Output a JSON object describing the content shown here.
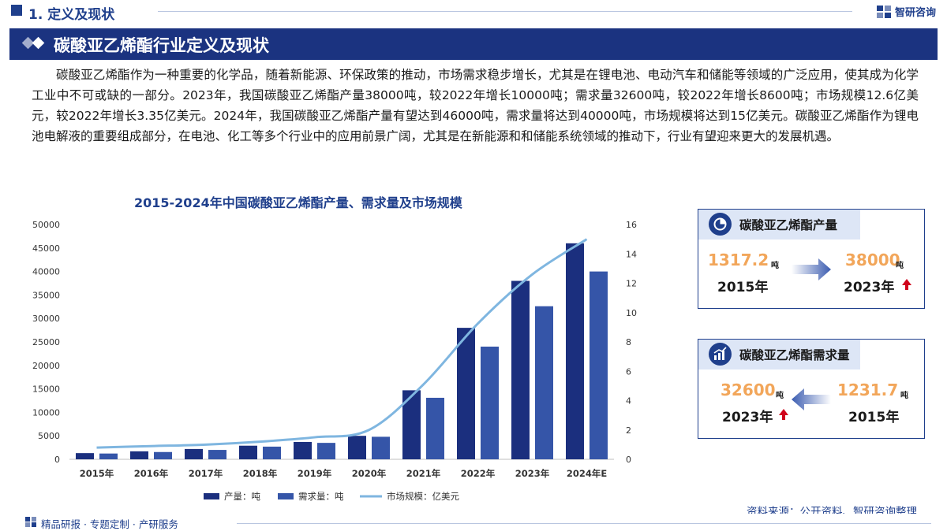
{
  "header": {
    "section": "1. 定义及现状",
    "brand": "智研咨询"
  },
  "title_bar": {
    "title": "碳酸亚乙烯酯行业定义及现状"
  },
  "intro": {
    "text": "碳酸亚乙烯酯作为一种重要的化学品，随着新能源、环保政策的推动，市场需求稳步增长，尤其是在锂电池、电动汽车和储能等领域的广泛应用，使其成为化学工业中不可或缺的一部分。2023年，我国碳酸亚乙烯酯产量38000吨，较2022年增长10000吨；需求量32600吨，较2022年增长8600吨；市场规模12.6亿美元，较2022年增长3.35亿美元。2024年，我国碳酸亚乙烯酯产量有望达到46000吨，需求量将达到40000吨，市场规模将达到15亿美元。碳酸亚乙烯酯作为锂电池电解液的重要组成部分，在电池、化工等多个行业中的应用前景广阔，尤其是在新能源和和储能系统领域的推动下，行业有望迎来更大的发展机遇。"
  },
  "chart_data": {
    "type": "bar",
    "title": "2015-2024年中国碳酸亚乙烯酯产量、需求量及市场规模",
    "categories": [
      "2015年",
      "2016年",
      "2017年",
      "2018年",
      "2019年",
      "2020年",
      "2021年",
      "2022年",
      "2023年",
      "2024年E"
    ],
    "series": [
      {
        "name": "产量：吨",
        "kind": "bar",
        "axis": "left",
        "color": "#1b2f7e",
        "values": [
          1317.2,
          1700,
          2200,
          2900,
          3700,
          5000,
          14700,
          28000,
          38000,
          46000
        ]
      },
      {
        "name": "需求量：吨",
        "kind": "bar",
        "axis": "left",
        "color": "#3555a8",
        "values": [
          1231.7,
          1550,
          2000,
          2700,
          3500,
          4800,
          13100,
          24000,
          32600,
          40000
        ]
      },
      {
        "name": "市场规模：亿美元",
        "kind": "line",
        "axis": "right",
        "color": "#7fb6e0",
        "values": [
          0.8,
          0.9,
          1.0,
          1.2,
          1.5,
          2.0,
          5.1,
          9.25,
          12.6,
          15.0
        ]
      }
    ],
    "y_left": {
      "min": 0,
      "max": 50000,
      "ticks": [
        "0",
        "5000",
        "10000",
        "15000",
        "20000",
        "25000",
        "30000",
        "35000",
        "40000",
        "45000",
        "50000"
      ]
    },
    "y_right": {
      "min": 0,
      "max": 16,
      "ticks": [
        "0",
        "2",
        "4",
        "6",
        "8",
        "10",
        "12",
        "14",
        "16"
      ]
    },
    "grid": false,
    "legend": "bottom-center"
  },
  "cards": {
    "production": {
      "title": "碳酸亚乙烯酯产量",
      "from_value": "1317.2",
      "from_unit": "吨",
      "from_year": "2015年",
      "to_value": "38000",
      "to_unit": "吨",
      "to_year": "2023年"
    },
    "demand": {
      "title": "碳酸亚乙烯酯需求量",
      "left_value": "32600",
      "left_unit": "吨",
      "left_year": "2023年",
      "right_value": "1231.7",
      "right_unit": "吨",
      "right_year": "2015年"
    }
  },
  "icons": {
    "brand_logo": "zhiyan-logo-icon",
    "production_icon": "pie-chart-icon",
    "demand_icon": "bar-growth-icon",
    "increase": "red-up-arrow-icon"
  },
  "footer": {
    "source": "资料来源：公开资料、智研咨询整理",
    "tagline": "精品研报 · 专题定制 · 产研服务"
  }
}
